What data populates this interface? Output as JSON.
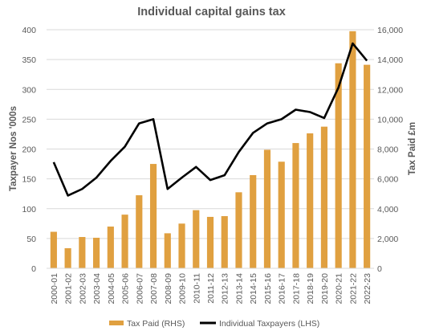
{
  "chart_data": {
    "type": "bar",
    "title": "Individual capital gains tax",
    "categories": [
      "2000-01",
      "2001-02",
      "2002-03",
      "2003-04",
      "2004-05",
      "2005-06",
      "2006-07",
      "2007-08",
      "2008-09",
      "2009-10",
      "2010-11",
      "2011-12",
      "2012-13",
      "2013-14",
      "2014-15",
      "2015-16",
      "2016-17",
      "2017-18",
      "2018-19",
      "2019-20",
      "2020-21",
      "2021-22",
      "2022-23"
    ],
    "y_left": {
      "label": "Taxpayer Nos '000s",
      "ylim": [
        0,
        400
      ],
      "ticks": [
        "0",
        "50",
        "100",
        "150",
        "200",
        "250",
        "300",
        "350",
        "400"
      ]
    },
    "y_right": {
      "label": "Tax Paid £m",
      "ylim": [
        0,
        16000
      ],
      "ticks": [
        "0",
        "2,000",
        "4,000",
        "6,000",
        "8,000",
        "10,000",
        "12,000",
        "14,000",
        "16,000"
      ]
    },
    "series": [
      {
        "name": "Tax Paid (RHS)",
        "type": "bar",
        "axis": "right",
        "color": "#E0A040",
        "values": [
          2450,
          1350,
          2100,
          2050,
          2800,
          3600,
          4900,
          7000,
          2350,
          3000,
          3900,
          3450,
          3500,
          5100,
          6250,
          7950,
          7150,
          8400,
          9050,
          9500,
          13750,
          15900,
          13650
        ]
      },
      {
        "name": "Individual Taxpayers (LHS)",
        "type": "line",
        "axis": "left",
        "color": "#000000",
        "values": [
          178,
          122,
          133,
          152,
          180,
          204,
          243,
          250,
          133,
          152,
          170,
          148,
          156,
          195,
          227,
          243,
          250,
          266,
          262,
          252,
          303,
          377,
          348
        ]
      }
    ],
    "grid": true,
    "legend_position": "bottom"
  }
}
